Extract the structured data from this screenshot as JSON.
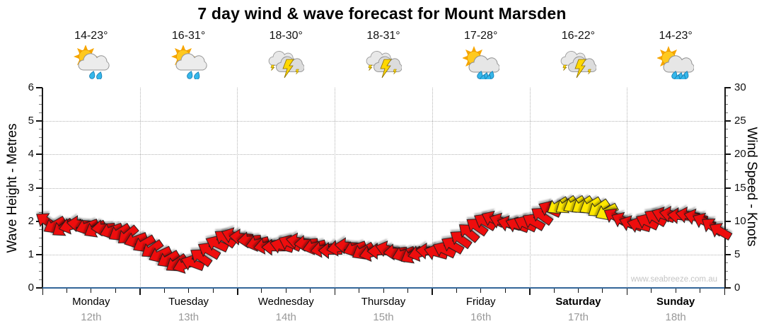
{
  "title": "7 day wind & wave forecast for Mount Marsden",
  "watermark": "www.seabreeze.com.au",
  "days": [
    {
      "name": "Monday",
      "date": "12th",
      "temp": "14-23°",
      "icon": "sun-cloud-showers",
      "weekend": false
    },
    {
      "name": "Tuesday",
      "date": "13th",
      "temp": "16-31°",
      "icon": "sun-cloud-showers",
      "weekend": false
    },
    {
      "name": "Wednesday",
      "date": "14th",
      "temp": "18-30°",
      "icon": "thunderstorm",
      "weekend": false
    },
    {
      "name": "Thursday",
      "date": "15th",
      "temp": "18-31°",
      "icon": "thunderstorm",
      "weekend": false
    },
    {
      "name": "Friday",
      "date": "16th",
      "temp": "17-28°",
      "icon": "sun-cloud-rain",
      "weekend": false
    },
    {
      "name": "Saturday",
      "date": "17th",
      "temp": "16-22°",
      "icon": "thunderstorm",
      "weekend": true
    },
    {
      "name": "Sunday",
      "date": "18th",
      "temp": "14-23°",
      "icon": "sun-cloud-rain",
      "weekend": true
    }
  ],
  "y_axis_left": {
    "label": "Wave Height - Metres",
    "min": 0,
    "max": 6,
    "major_step": 1,
    "minor_step": 0.25
  },
  "y_axis_right": {
    "label": "Wind Speed - Knots",
    "min": 0,
    "max": 30,
    "major_step": 5,
    "minor_step": 1.25
  },
  "colors": {
    "arrow_red": "#EE1111",
    "arrow_yellow": "#FFE800",
    "arrow_outline": "#1b1b1b",
    "x_axis_line": "#336699",
    "grid": "#b4b4b4",
    "date_text": "#999999",
    "watermark_text": "#c4c4c4"
  },
  "chart_data": {
    "type": "wind-arrows",
    "title": "7 day wind & wave forecast for Mount Marsden",
    "x_unit": "days",
    "x_range_days": [
      0,
      7
    ],
    "samples_per_day": 12,
    "ylim_left_metres": [
      0,
      6
    ],
    "ylim_right_knots": [
      0,
      30
    ],
    "grid": true,
    "wave_height_metres": 0,
    "wind_speed_knots": [
      10.0,
      9.4,
      9.0,
      9.3,
      9.6,
      9.2,
      8.8,
      9.0,
      8.6,
      8.3,
      7.9,
      7.2,
      6.6,
      5.8,
      5.0,
      4.3,
      3.7,
      3.4,
      3.7,
      4.6,
      5.6,
      6.6,
      7.4,
      7.8,
      7.6,
      7.2,
      6.7,
      6.3,
      6.1,
      6.3,
      6.7,
      7.0,
      6.7,
      6.2,
      5.8,
      5.6,
      6.0,
      6.3,
      5.9,
      5.5,
      5.2,
      5.5,
      5.8,
      5.4,
      5.1,
      4.9,
      5.2,
      5.5,
      5.3,
      5.7,
      6.4,
      7.3,
      8.3,
      9.2,
      9.9,
      10.3,
      10.0,
      9.6,
      9.4,
      9.6,
      9.9,
      10.8,
      11.8,
      12.3,
      12.4,
      12.5,
      12.4,
      12.3,
      11.9,
      11.4,
      10.7,
      10.1,
      9.6,
      9.4,
      9.9,
      10.5,
      10.9,
      11.0,
      10.8,
      10.9,
      10.6,
      10.0,
      9.2,
      8.5
    ],
    "arrow_rotation_deg_cw_from_east": [
      215,
      150,
      145,
      165,
      185,
      160,
      150,
      175,
      160,
      148,
      140,
      160,
      150,
      145,
      155,
      150,
      145,
      160,
      200,
      215,
      210,
      205,
      215,
      200,
      185,
      175,
      165,
      170,
      180,
      195,
      205,
      190,
      175,
      165,
      170,
      180,
      170,
      185,
      160,
      150,
      165,
      180,
      195,
      175,
      160,
      150,
      165,
      185,
      195,
      205,
      210,
      215,
      220,
      215,
      210,
      205,
      200,
      195,
      200,
      205,
      210,
      215,
      205,
      148,
      145,
      150,
      146,
      149,
      145,
      152,
      210,
      205,
      200,
      195,
      205,
      210,
      200,
      190,
      185,
      190,
      195,
      205,
      215,
      210
    ],
    "yellow_arrow_index_range": [
      63,
      69
    ]
  }
}
